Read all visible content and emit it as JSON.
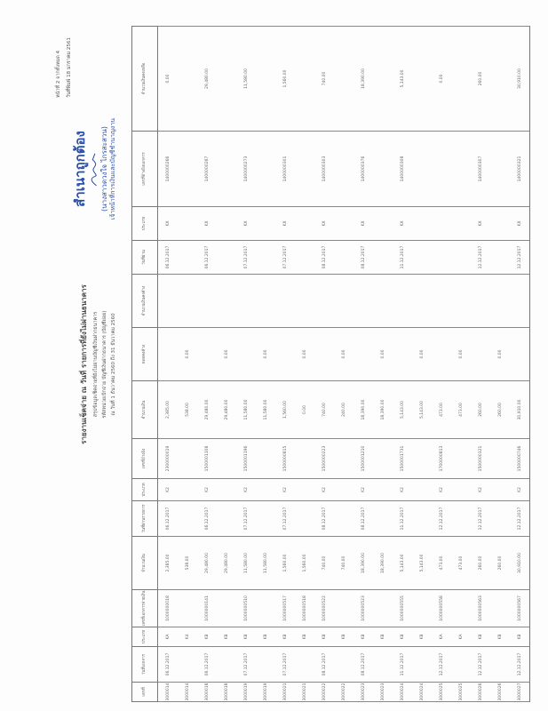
{
  "header": {
    "title": "รายงานเช็คจ่าย ณ วันที่ รายการที่ยังไม่ผ่านธนาคาร",
    "subtitle": "สรุปข้อมูลเช็คจ่ายที่ยังไม่ผ่านบัญชีเงินฝากธนาคาร",
    "account": "รหัสหน่วยเบิกจ่าย บัญชีเงินฝากธนาคาร (บัญชีย่อย)",
    "period": "ณ วันที่ 1 ธันวาคม 2560 ถึง 31 ธันวาคม 2560"
  },
  "page_info": {
    "page_label": "หน้าที่",
    "page": "2",
    "of_label": "จากทั้งหมด",
    "total": "4",
    "print_label": "วันที่พิมพ์",
    "print_date": "18 มกราคม 2561"
  },
  "table": {
    "columns": [
      "เลขที่",
      "วันที่เอกสาร",
      "ประเภท",
      "เลขที่เอกสารจ่ายเงิน",
      "จำนวนเงิน",
      "วันที่ผ่านรายการ",
      "ประเภท",
      "เลขที่อ้างอิง",
      "จำนวนเงิน",
      "ยอดคงค้าง",
      "จำนวนเงินคงค้าง",
      "วันที่ผ่าน",
      "ประเภท",
      "เลขที่อ้างอิงเอกสาร",
      "จำนวนเงินคงเหลือ"
    ],
    "rows": [
      [
        "3000014",
        "06.12.2017",
        "KA",
        "1000000018",
        "2,385.00",
        "06.12.2017",
        "K2",
        "2300000019",
        "2,385.00",
        "",
        "",
        "06.12.2017",
        "KX",
        "1400000266",
        "0.00"
      ],
      [
        "3000014",
        "",
        "K4",
        "",
        "538.00",
        "",
        "",
        "",
        "538.00",
        "0.00",
        "",
        "",
        "",
        "",
        ""
      ],
      [
        "3000018",
        "06.12.2017",
        "KB",
        "1000000141",
        "29,480.00",
        "06.12.2017",
        "K2",
        "1500001108",
        "29,480.00",
        "",
        "",
        "06.12.2017",
        "KX",
        "1400000267",
        "29,480.00"
      ],
      [
        "3000018",
        "",
        "KB",
        "",
        "29,480.00",
        "",
        "",
        "",
        "29,480.00",
        "0.00",
        "",
        "",
        "",
        "",
        ""
      ],
      [
        "3000019",
        "07.12.2017",
        "KB",
        "1000000510",
        "11,580.00",
        "07.12.2017",
        "K2",
        "1500001196",
        "11,580.00",
        "",
        "",
        "07.12.2017",
        "KX",
        "1400000273",
        "11,580.00"
      ],
      [
        "3000019",
        "",
        "KB",
        "",
        "11,580.00",
        "",
        "",
        "",
        "11,580.00",
        "0.00",
        "",
        "",
        "",
        "",
        ""
      ],
      [
        "3000021",
        "07.12.2017",
        "KB",
        "1000000517",
        "1,560.00",
        "07.12.2017",
        "K2",
        "1500000815",
        "1,560.00",
        "",
        "",
        "07.12.2017",
        "KX",
        "1400000301",
        "1,560.00"
      ],
      [
        "3000021",
        "",
        "KB",
        "1000000518",
        "1,560.00",
        "",
        "",
        "",
        "0.00",
        "0.00",
        "",
        "",
        "",
        "",
        ""
      ],
      [
        "3000022",
        "08.12.2017",
        "KB",
        "1000000522",
        "740.00",
        "08.12.2017",
        "K2",
        "1500000223",
        "740.00",
        "",
        "",
        "08.12.2017",
        "KX",
        "1400000303",
        "740.00"
      ],
      [
        "3000022",
        "",
        "KB",
        "",
        "740.00",
        "",
        "",
        "",
        "240.00",
        "0.00",
        "",
        "",
        "",
        "",
        ""
      ],
      [
        "3000023",
        "08.12.2017",
        "KB",
        "1000000523",
        "18,390.00",
        "08.12.2017",
        "K2",
        "1500001210",
        "18,390.00",
        "",
        "",
        "08.12.2017",
        "KX",
        "1400000376",
        "18,390.00"
      ],
      [
        "3000023",
        "",
        "KB",
        "",
        "18,390.00",
        "",
        "",
        "",
        "18,390.00",
        "0.00",
        "",
        "",
        "",
        "",
        ""
      ],
      [
        "3000024",
        "11.12.2017",
        "KB",
        "1000000555",
        "5,143.00",
        "11.12.2017",
        "K2",
        "1500001731",
        "5,143.00",
        "",
        "",
        "11.12.2017",
        "KX",
        "1400000308",
        "5,143.00"
      ],
      [
        "3000024",
        "",
        "KB",
        "",
        "5,143.00",
        "",
        "",
        "",
        "5,143.00",
        "0.00",
        "",
        "",
        "",
        "",
        ""
      ],
      [
        "3000025",
        "12.12.2017",
        "KA",
        "1000000558",
        "473.00",
        "12.12.2017",
        "K2",
        "1700000813",
        "473.00",
        "",
        "",
        "",
        "",
        "",
        "0.00"
      ],
      [
        "3000025",
        "",
        "KA",
        "",
        "473.00",
        "",
        "",
        "",
        "473.00",
        "0.00",
        "",
        "",
        "",
        "",
        ""
      ],
      [
        "3000026",
        "12.12.2017",
        "KB",
        "1000000563",
        "260.00",
        "12.12.2017",
        "K2",
        "1500000321",
        "260.00",
        "",
        "",
        "12.12.2017",
        "KX",
        "1400000307",
        "260.00"
      ],
      [
        "3000026",
        "",
        "KB",
        "",
        "260.00",
        "",
        "",
        "",
        "260.00",
        "0.00",
        "",
        "",
        "",
        "",
        ""
      ],
      [
        "3000027",
        "12.12.2017",
        "KB",
        "1000000567",
        "30,910.00",
        "12.12.2017",
        "K2",
        "1500000746",
        "30,910.00",
        "",
        "",
        "12.12.2017",
        "KX",
        "1400000321",
        "30,910.00"
      ]
    ]
  },
  "stamp": {
    "certified": "สำเนาถูกต้อง",
    "name": "(นางสาวดวงใจ ไกรสะสวน)",
    "position": "เจ้าหน้าที่การเงินและบัญชีชำนาญงาน",
    "color": "#2a4fa8"
  }
}
